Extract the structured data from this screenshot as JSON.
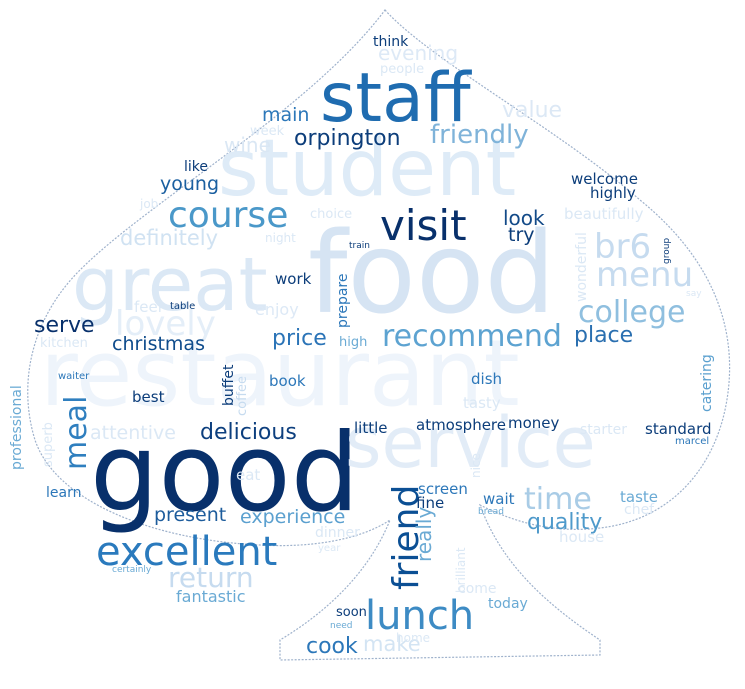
{
  "image": {
    "type": "word-cloud",
    "shape": "spade",
    "background": "#ffffff",
    "outline_color": "#8aa0c0",
    "palette": [
      "#08306b",
      "#08519c",
      "#2171b5",
      "#4292c6",
      "#6baed6",
      "#9ecae1",
      "#c6dbef",
      "#deebf7",
      "#eef4fb"
    ]
  },
  "words": [
    {
      "text": "restaurant",
      "color": "#eef4fb",
      "vertical": false
    },
    {
      "text": "food",
      "color": "#d6e4f3",
      "vertical": false
    },
    {
      "text": "good",
      "color": "#08306b",
      "vertical": false
    },
    {
      "text": "service",
      "color": "#e2ecf7",
      "vertical": false
    },
    {
      "text": "student",
      "color": "#deebf7",
      "vertical": false
    },
    {
      "text": "staff",
      "color": "#1f6cb0",
      "vertical": false
    },
    {
      "text": "great",
      "color": "#dbe8f5",
      "vertical": false
    },
    {
      "text": "visit",
      "color": "#08306b",
      "vertical": false
    },
    {
      "text": "excellent",
      "color": "#2a7abd",
      "vertical": false
    },
    {
      "text": "course",
      "color": "#4a98c9",
      "vertical": false
    },
    {
      "text": "lunch",
      "color": "#3d8bc4",
      "vertical": false
    },
    {
      "text": "friend",
      "color": "#0b4f94",
      "vertical": true
    },
    {
      "text": "br6",
      "color": "#c6dbef",
      "vertical": false
    },
    {
      "text": "menu",
      "color": "#c6dbef",
      "vertical": false
    },
    {
      "text": "college",
      "color": "#8fbfdf",
      "vertical": false
    },
    {
      "text": "lovely",
      "color": "#e4eef8",
      "vertical": false
    },
    {
      "text": "recommend",
      "color": "#5da3d1",
      "vertical": false
    },
    {
      "text": "meal",
      "color": "#2f7fbf",
      "vertical": true
    },
    {
      "text": "time",
      "color": "#a9cce6",
      "vertical": false
    },
    {
      "text": "return",
      "color": "#c6dbef",
      "vertical": false
    },
    {
      "text": "friendly",
      "color": "#7fb3d9",
      "vertical": false
    },
    {
      "text": "quality",
      "color": "#4f9acb",
      "vertical": false
    },
    {
      "text": "orpington",
      "color": "#0c3d7a",
      "vertical": false
    },
    {
      "text": "serve",
      "color": "#08306b",
      "vertical": false
    },
    {
      "text": "place",
      "color": "#2a6fb0",
      "vertical": false
    },
    {
      "text": "price",
      "color": "#2b74b7",
      "vertical": false
    },
    {
      "text": "definitely",
      "color": "#d0e2f2",
      "vertical": false
    },
    {
      "text": "delicious",
      "color": "#0d3f7e",
      "vertical": false
    },
    {
      "text": "experience",
      "color": "#5ba0cf",
      "vertical": false
    },
    {
      "text": "christmas",
      "color": "#0f4c8c",
      "vertical": false
    },
    {
      "text": "young",
      "color": "#1a5fa0",
      "vertical": false
    },
    {
      "text": "main",
      "color": "#2c77b9",
      "vertical": false
    },
    {
      "text": "evening",
      "color": "#dde9f6",
      "vertical": false
    },
    {
      "text": "value",
      "color": "#dce8f5",
      "vertical": false
    },
    {
      "text": "wine",
      "color": "#dae7f4",
      "vertical": false
    },
    {
      "text": "look",
      "color": "#134a88",
      "vertical": false
    },
    {
      "text": "try",
      "color": "#0c3d7a",
      "vertical": false
    },
    {
      "text": "present",
      "color": "#1d5c9c",
      "vertical": false
    },
    {
      "text": "attentive",
      "color": "#dbe8f5",
      "vertical": false
    },
    {
      "text": "fantastic",
      "color": "#6aaad4",
      "vertical": false
    },
    {
      "text": "cook",
      "color": "#2c77b9",
      "vertical": false
    },
    {
      "text": "make",
      "color": "#d3e4f3",
      "vertical": false
    },
    {
      "text": "really",
      "color": "#6aaad4",
      "vertical": true
    },
    {
      "text": "enjoy",
      "color": "#dde9f6",
      "vertical": false
    },
    {
      "text": "little",
      "color": "#0c3d7a",
      "vertical": false
    },
    {
      "text": "atmosphere",
      "color": "#0c3d7a",
      "vertical": false
    },
    {
      "text": "money",
      "color": "#0c3d7a",
      "vertical": false
    },
    {
      "text": "standard",
      "color": "#0c3d7a",
      "vertical": false
    },
    {
      "text": "welcome",
      "color": "#0c3d7a",
      "vertical": false
    },
    {
      "text": "highly",
      "color": "#0c3d7a",
      "vertical": false
    },
    {
      "text": "beautifully",
      "color": "#dbe8f5",
      "vertical": false
    },
    {
      "text": "work",
      "color": "#0c3d7a",
      "vertical": false
    },
    {
      "text": "prepare",
      "color": "#2c77b9",
      "vertical": true
    },
    {
      "text": "dish",
      "color": "#2c77b9",
      "vertical": false
    },
    {
      "text": "tasty",
      "color": "#dbe8f5",
      "vertical": false
    },
    {
      "text": "book",
      "color": "#2c77b9",
      "vertical": false
    },
    {
      "text": "best",
      "color": "#0c3d7a",
      "vertical": false
    },
    {
      "text": "buffet",
      "color": "#0c3d7a",
      "vertical": true
    },
    {
      "text": "coffee",
      "color": "#c6dbef",
      "vertical": true
    },
    {
      "text": "fine",
      "color": "#0c3d7a",
      "vertical": false
    },
    {
      "text": "screen",
      "color": "#2c77b9",
      "vertical": false
    },
    {
      "text": "wait",
      "color": "#2c77b9",
      "vertical": false
    },
    {
      "text": "taste",
      "color": "#6aaad4",
      "vertical": false
    },
    {
      "text": "chef",
      "color": "#dbe8f5",
      "vertical": false
    },
    {
      "text": "house",
      "color": "#dbe8f5",
      "vertical": false
    },
    {
      "text": "starter",
      "color": "#dbe8f5",
      "vertical": false
    },
    {
      "text": "catering",
      "color": "#5ba0cf",
      "vertical": true
    },
    {
      "text": "marcel",
      "color": "#2c77b9",
      "vertical": false
    },
    {
      "text": "professional",
      "color": "#6aaad4",
      "vertical": true
    },
    {
      "text": "superb",
      "color": "#dbe8f5",
      "vertical": true
    },
    {
      "text": "learn",
      "color": "#2c77b9",
      "vertical": false
    },
    {
      "text": "eat",
      "color": "#dbe8f5",
      "vertical": false
    },
    {
      "text": "waiter",
      "color": "#2c77b9",
      "vertical": false
    },
    {
      "text": "kitchen",
      "color": "#dbe8f5",
      "vertical": false
    },
    {
      "text": "feel",
      "color": "#dbe8f5",
      "vertical": false
    },
    {
      "text": "table",
      "color": "#0c3d7a",
      "vertical": false
    },
    {
      "text": "high",
      "color": "#6aaad4",
      "vertical": false
    },
    {
      "text": "think",
      "color": "#0c3d7a",
      "vertical": false
    },
    {
      "text": "people",
      "color": "#dbe8f5",
      "vertical": false
    },
    {
      "text": "week",
      "color": "#dbe8f5",
      "vertical": false
    },
    {
      "text": "like",
      "color": "#0c3d7a",
      "vertical": false
    },
    {
      "text": "job",
      "color": "#dbe8f5",
      "vertical": false
    },
    {
      "text": "choice",
      "color": "#dbe8f5",
      "vertical": false
    },
    {
      "text": "night",
      "color": "#dbe8f5",
      "vertical": false
    },
    {
      "text": "train",
      "color": "#0c3d7a",
      "vertical": false
    },
    {
      "text": "wonderful",
      "color": "#dbe8f5",
      "vertical": true
    },
    {
      "text": "group",
      "color": "#0c3d7a",
      "vertical": true
    },
    {
      "text": "say",
      "color": "#dbe8f5",
      "vertical": false
    },
    {
      "text": "nice",
      "color": "#dbe8f5",
      "vertical": true
    },
    {
      "text": "bread",
      "color": "#6aaad4",
      "vertical": false
    },
    {
      "text": "brilliant",
      "color": "#dbe8f5",
      "vertical": true
    },
    {
      "text": "dinner",
      "color": "#dbe8f5",
      "vertical": false
    },
    {
      "text": "year",
      "color": "#dbe8f5",
      "vertical": false
    },
    {
      "text": "certainly",
      "color": "#6aaad4",
      "vertical": false
    },
    {
      "text": "come",
      "color": "#dbe8f5",
      "vertical": false
    },
    {
      "text": "soon",
      "color": "#0c3d7a",
      "vertical": false
    },
    {
      "text": "today",
      "color": "#6aaad4",
      "vertical": false
    },
    {
      "text": "need",
      "color": "#6aaad4",
      "vertical": false
    },
    {
      "text": "home",
      "color": "#dbe8f5",
      "vertical": false
    }
  ]
}
